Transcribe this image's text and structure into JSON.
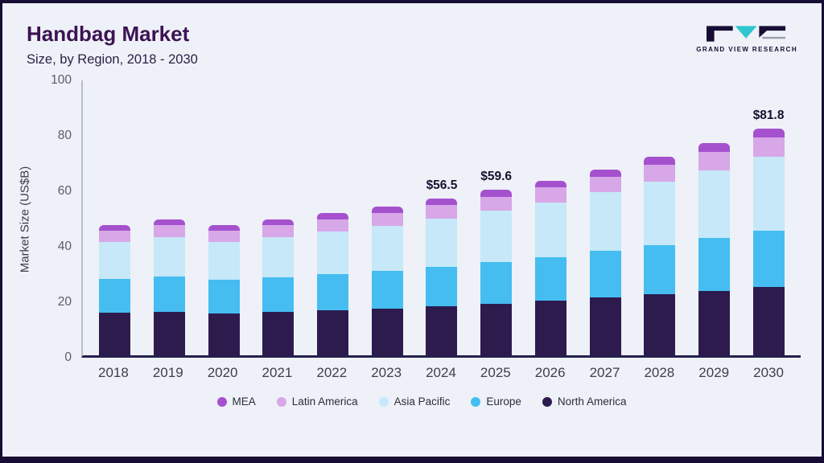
{
  "page": {
    "background": "#eef1f7",
    "frame_color": "#150d33"
  },
  "header": {
    "title": "Handbag Market",
    "subtitle": "Size, by Region, 2018 - 2030",
    "logo_text": "GRAND VIEW RESEARCH"
  },
  "chart_data": {
    "type": "bar",
    "stacked": true,
    "title": "Handbag Market Size, by Region, 2018 - 2030",
    "xlabel": "",
    "ylabel": "Market Size (US$B)",
    "ylim": [
      0,
      100
    ],
    "yticks": [
      0,
      20,
      40,
      60,
      80,
      100
    ],
    "grid": false,
    "legend_position": "bottom",
    "categories": [
      "2018",
      "2019",
      "2020",
      "2021",
      "2022",
      "2023",
      "2024",
      "2025",
      "2026",
      "2027",
      "2028",
      "2029",
      "2030"
    ],
    "series": [
      {
        "name": "North America",
        "color": "#2d1b4e",
        "values": [
          15.5,
          15.8,
          15.0,
          15.7,
          16.3,
          16.9,
          17.6,
          18.5,
          19.6,
          20.8,
          22.0,
          23.2,
          24.5
        ]
      },
      {
        "name": "Europe",
        "color": "#45bdf1",
        "values": [
          12.0,
          12.7,
          12.2,
          12.5,
          13.0,
          13.6,
          14.4,
          15.2,
          15.8,
          16.8,
          17.8,
          19.0,
          20.5
        ]
      },
      {
        "name": "Asia Pacific",
        "color": "#c6e8f8",
        "values": [
          13.5,
          14.2,
          13.8,
          14.5,
          15.3,
          16.3,
          17.3,
          18.4,
          19.7,
          21.2,
          22.8,
          24.6,
          26.6
        ]
      },
      {
        "name": "Latin America",
        "color": "#d7a7e8",
        "values": [
          4.0,
          4.2,
          4.0,
          4.2,
          4.4,
          4.6,
          4.9,
          5.1,
          5.4,
          5.7,
          6.1,
          6.6,
          7.0
        ]
      },
      {
        "name": "MEA",
        "color": "#a551ce",
        "values": [
          2.0,
          2.1,
          2.0,
          2.1,
          2.2,
          2.3,
          2.3,
          2.4,
          2.5,
          2.6,
          2.8,
          3.1,
          3.2
        ]
      }
    ],
    "annotations": [
      {
        "category": "2024",
        "text": "$56.5"
      },
      {
        "category": "2025",
        "text": "$59.6"
      },
      {
        "category": "2030",
        "text": "$81.8"
      }
    ],
    "legend": [
      "MEA",
      "Latin America",
      "Asia Pacific",
      "Europe",
      "North America"
    ]
  }
}
